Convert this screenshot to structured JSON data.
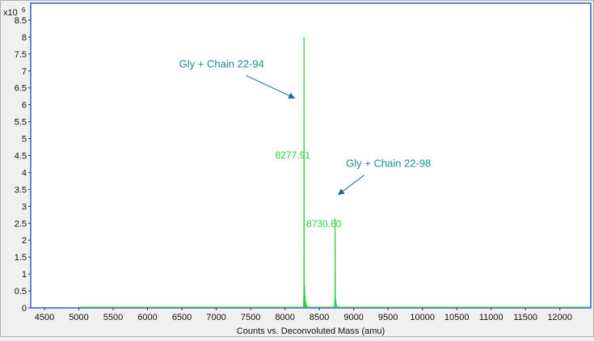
{
  "chart_data": {
    "type": "line",
    "xlabel": "Counts vs. Deconvoluted Mass (amu)",
    "ylabel": "",
    "y_multiplier_label": "x10",
    "y_multiplier_exponent": "6",
    "xlim": [
      4300,
      12450
    ],
    "ylim": [
      0,
      9
    ],
    "x_ticks": [
      "4500",
      "5000",
      "5500",
      "6000",
      "6500",
      "7000",
      "7500",
      "8000",
      "8500",
      "9000",
      "9500",
      "10000",
      "10500",
      "11000",
      "11500",
      "12000"
    ],
    "y_ticks": [
      "0",
      "0.5",
      "1",
      "1.5",
      "2",
      "2.5",
      "3",
      "3.5",
      "4",
      "4.5",
      "5",
      "5.5",
      "6",
      "6.5",
      "7",
      "7.5",
      "8",
      "8.5"
    ],
    "grid": false,
    "legend": "none",
    "series": [
      {
        "color": "#2ecc40",
        "x": [
          5000,
          8270,
          8276,
          8277.91,
          8280,
          8284,
          8286,
          8289,
          8293,
          8296,
          8300,
          8304,
          8310,
          8320,
          8360,
          8400,
          8700,
          8722,
          8728,
          8730.6,
          8733,
          8737,
          8740,
          8744,
          8748,
          8752,
          8760,
          8780,
          12450
        ],
        "y": [
          0.02,
          0.02,
          0.5,
          8.0,
          0.7,
          0.02,
          0.68,
          0.02,
          0.35,
          0.02,
          0.2,
          0.02,
          0.08,
          0.03,
          0.02,
          0.02,
          0.02,
          0.02,
          0.4,
          2.65,
          0.4,
          0.02,
          0.25,
          0.02,
          0.12,
          0.02,
          0.03,
          0.02,
          0.02
        ]
      }
    ],
    "peak_labels": [
      {
        "x": 8277.91,
        "y": 8.0,
        "text": "8277.91"
      },
      {
        "x": 8730.6,
        "y": 2.65,
        "text": "8730.60"
      }
    ],
    "annotations": [
      {
        "text": "Gly + Chain 22-94",
        "arrow_target_x": 8277.91,
        "arrow_target_y": 6.2
      },
      {
        "text": "Gly + Chain 22-98",
        "arrow_target_x": 8730.6,
        "arrow_target_y": 3.35
      }
    ],
    "colors": {
      "line": "#2ecc40",
      "peak_label": "#2ecc40",
      "annotation": "#1a8c8c",
      "arrow": "#1a6a8c",
      "frame": "#3a5fcd",
      "background": "#ffffff",
      "outer": "#f0f0f0"
    }
  }
}
